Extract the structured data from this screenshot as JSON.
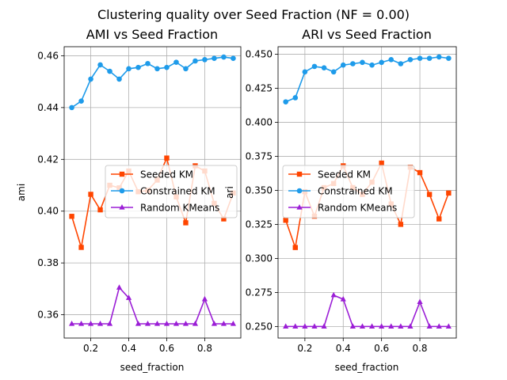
{
  "figure_title": "Clustering quality over Seed Fraction (NF = 0.00)",
  "colors": {
    "seeded": "#FF4500",
    "constrained": "#1E9BEA",
    "random": "#9B1ED6"
  },
  "chart_data": [
    {
      "type": "line",
      "title": "AMI vs Seed Fraction",
      "xlabel": "seed_fraction",
      "ylabel": "ami",
      "xlim": [
        0.06,
        0.99
      ],
      "ylim": [
        0.351,
        0.4635
      ],
      "xticks": [
        "0.2",
        "0.4",
        "0.6",
        "0.8"
      ],
      "yticks": [
        "0.36",
        "0.38",
        "0.40",
        "0.42",
        "0.44",
        "0.46"
      ],
      "grid": true,
      "legend_position": "center-right",
      "x": [
        0.1,
        0.15,
        0.2,
        0.25,
        0.3,
        0.35,
        0.4,
        0.45,
        0.5,
        0.55,
        0.6,
        0.65,
        0.7,
        0.75,
        0.8,
        0.85,
        0.9,
        0.95
      ],
      "series": [
        {
          "name": "Seeded KM",
          "marker": "square",
          "values": [
            0.398,
            0.386,
            0.4065,
            0.4005,
            0.41,
            0.409,
            0.4155,
            0.4075,
            0.408,
            0.412,
            0.4205,
            0.4055,
            0.3955,
            0.4175,
            0.4155,
            0.403,
            0.397,
            0.407
          ]
        },
        {
          "name": "Constrained KM",
          "marker": "circle",
          "values": [
            0.44,
            0.4425,
            0.451,
            0.4565,
            0.454,
            0.451,
            0.455,
            0.4555,
            0.457,
            0.455,
            0.4555,
            0.4575,
            0.455,
            0.458,
            0.4585,
            0.459,
            0.4595,
            0.459
          ]
        },
        {
          "name": "Random KMeans",
          "marker": "triangle",
          "values": [
            0.3565,
            0.3565,
            0.3565,
            0.3565,
            0.3565,
            0.3705,
            0.3665,
            0.3565,
            0.3565,
            0.3565,
            0.3565,
            0.3565,
            0.3565,
            0.3565,
            0.366,
            0.3565,
            0.3565,
            0.3565
          ]
        }
      ]
    },
    {
      "type": "line",
      "title": "ARI vs Seed Fraction",
      "xlabel": "seed_fraction",
      "ylabel": "ari",
      "xlim": [
        0.06,
        0.99
      ],
      "ylim": [
        0.2415,
        0.4555
      ],
      "xticks": [
        "0.2",
        "0.4",
        "0.6",
        "0.8"
      ],
      "yticks": [
        "0.250",
        "0.275",
        "0.300",
        "0.325",
        "0.350",
        "0.375",
        "0.400",
        "0.425",
        "0.450"
      ],
      "grid": true,
      "legend_position": "center-left",
      "x": [
        0.1,
        0.15,
        0.2,
        0.25,
        0.3,
        0.35,
        0.4,
        0.45,
        0.5,
        0.55,
        0.6,
        0.65,
        0.7,
        0.75,
        0.8,
        0.85,
        0.9,
        0.95
      ],
      "series": [
        {
          "name": "Seeded KM",
          "marker": "square",
          "values": [
            0.328,
            0.308,
            0.349,
            0.331,
            0.352,
            0.355,
            0.368,
            0.352,
            0.347,
            0.356,
            0.37,
            0.34,
            0.325,
            0.367,
            0.363,
            0.347,
            0.329,
            0.348
          ]
        },
        {
          "name": "Constrained KM",
          "marker": "circle",
          "values": [
            0.415,
            0.418,
            0.437,
            0.441,
            0.44,
            0.437,
            0.442,
            0.443,
            0.444,
            0.442,
            0.444,
            0.446,
            0.443,
            0.446,
            0.447,
            0.447,
            0.448,
            0.447
          ]
        },
        {
          "name": "Random KMeans",
          "marker": "triangle",
          "values": [
            0.25,
            0.25,
            0.25,
            0.25,
            0.25,
            0.273,
            0.27,
            0.25,
            0.25,
            0.25,
            0.25,
            0.25,
            0.25,
            0.25,
            0.268,
            0.25,
            0.25,
            0.25
          ]
        }
      ]
    }
  ]
}
